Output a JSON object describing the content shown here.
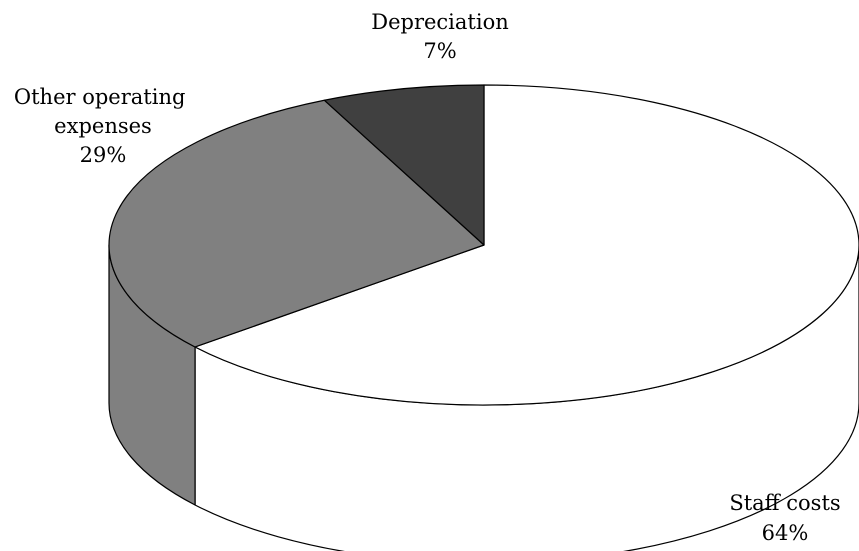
{
  "chart_data": {
    "type": "pie",
    "style": "3d",
    "title": "",
    "start": "12 o'clock, clockwise",
    "slices": [
      {
        "name": "Staff costs",
        "value": 64,
        "value_label": "64%",
        "color": "#ffffff"
      },
      {
        "name": "Other operating expenses",
        "name_lines": [
          "Other operating",
          "expenses"
        ],
        "value": 29,
        "value_label": "29%",
        "color": "#808080"
      },
      {
        "name": "Depreciation",
        "value": 7,
        "value_label": "7%",
        "color": "#404040"
      }
    ],
    "edge_color": "#000000",
    "legend": "none"
  }
}
